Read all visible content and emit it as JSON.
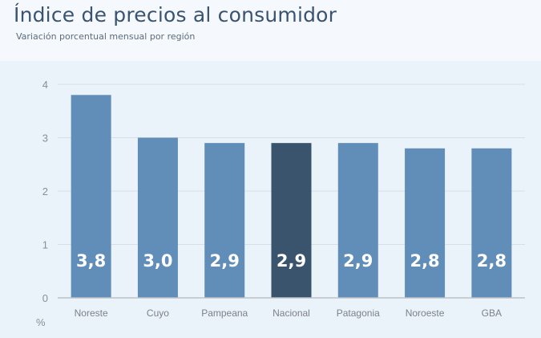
{
  "header": {
    "title": "Índice de precios al consumidor",
    "subtitle": "Variación porcentual mensual por región"
  },
  "chart_data": {
    "type": "bar",
    "title": "Índice de precios al consumidor",
    "subtitle": "Variación porcentual mensual por región",
    "categories": [
      "Noreste",
      "Cuyo",
      "Pampeana",
      "Nacional",
      "Patagonia",
      "Noroeste",
      "GBA"
    ],
    "values": [
      3.8,
      3.0,
      2.9,
      2.9,
      2.9,
      2.8,
      2.8
    ],
    "value_labels": [
      "3,8",
      "3,0",
      "2,9",
      "2,9",
      "2,9",
      "2,8",
      "2,8"
    ],
    "highlight": "Nacional",
    "ylabel": "%",
    "ylim": [
      0,
      4
    ],
    "yticks": [
      "0",
      "1",
      "2",
      "3",
      "4"
    ],
    "grid": true,
    "colors": {
      "default": "#618eb8",
      "highlight": "#3a546e"
    }
  }
}
